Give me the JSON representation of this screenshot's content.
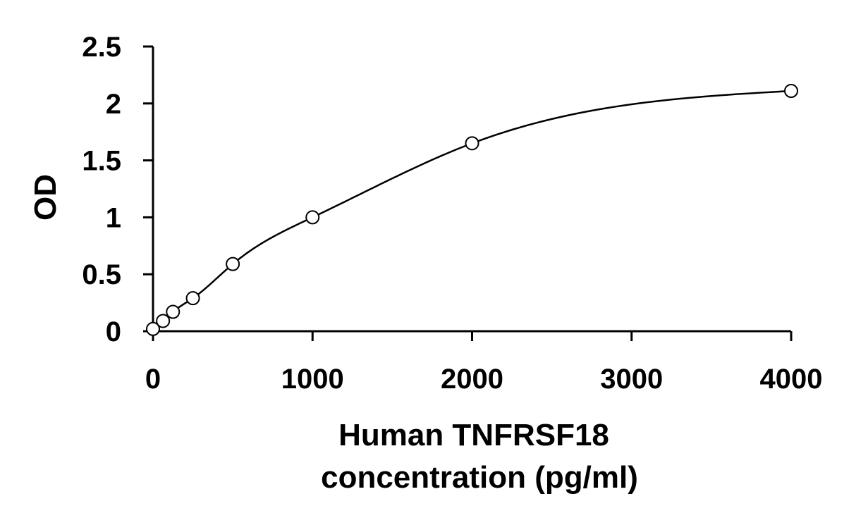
{
  "chart_data": {
    "type": "scatter",
    "title": "",
    "xlabel_lines": [
      "Human TNFRSF18",
      "concentration (pg/ml)"
    ],
    "ylabel": "OD",
    "xlim": [
      0,
      4000
    ],
    "ylim": [
      0,
      2.5
    ],
    "xticks": [
      0,
      1000,
      2000,
      3000,
      4000
    ],
    "yticks": [
      0,
      0.5,
      1,
      1.5,
      2,
      2.5
    ],
    "xtick_labels": [
      "0",
      "1000",
      "2000",
      "3000",
      "4000"
    ],
    "ytick_labels": [
      "0",
      "0.5",
      "1",
      "1.5",
      "2",
      "2.5"
    ],
    "grid": false,
    "legend": "none",
    "series": [
      {
        "marker": "open-circle",
        "trendline": "smooth-fit",
        "x": [
          0,
          62.5,
          125,
          250,
          500,
          1000,
          2000,
          4000
        ],
        "y": [
          0.02,
          0.09,
          0.17,
          0.29,
          0.59,
          1.0,
          1.65,
          2.11
        ]
      }
    ]
  }
}
